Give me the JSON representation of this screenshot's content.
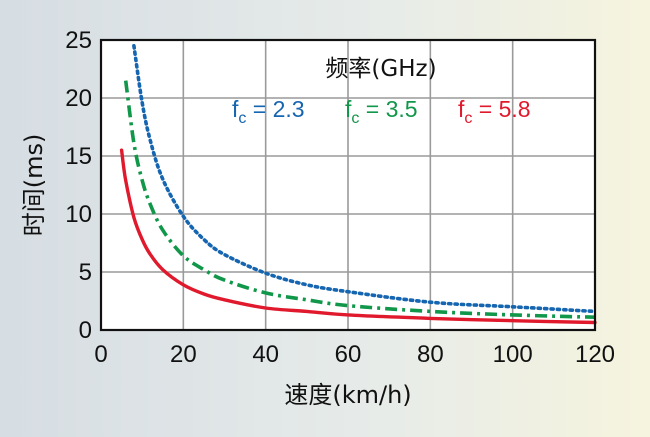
{
  "chart_data": {
    "type": "line",
    "xlabel": "速度(km/h)",
    "ylabel": "时间(ms)",
    "xlim": [
      0,
      120
    ],
    "ylim": [
      0,
      25
    ],
    "x_ticks": [
      0,
      20,
      40,
      60,
      80,
      100,
      120
    ],
    "y_ticks": [
      0,
      5,
      10,
      15,
      20,
      25
    ],
    "grid": true,
    "legend": {
      "title": "频率(GHz)",
      "placement": "top-right",
      "entries": [
        {
          "prefix": "f",
          "sub": "c",
          "text": " = 2.3",
          "color": "#1565b0"
        },
        {
          "prefix": "f",
          "sub": "c",
          "text": " = 3.5",
          "color": "#11974a"
        },
        {
          "prefix": "f",
          "sub": "c",
          "text": " = 5.8",
          "color": "#e0192c"
        }
      ]
    },
    "series": [
      {
        "color": "#1565b0",
        "style": "dotted",
        "x": [
          8,
          10,
          12,
          15,
          20,
          25,
          30,
          40,
          50,
          60,
          80,
          100,
          120
        ],
        "y": [
          24.5,
          19.6,
          16.3,
          13.0,
          9.8,
          7.8,
          6.5,
          4.9,
          3.9,
          3.3,
          2.4,
          2.0,
          1.6
        ]
      },
      {
        "color": "#11974a",
        "style": "dashdot",
        "x": [
          6,
          8,
          10,
          12,
          15,
          20,
          25,
          30,
          40,
          50,
          60,
          80,
          100,
          120
        ],
        "y": [
          21.5,
          16.1,
          12.9,
          10.8,
          8.6,
          6.4,
          5.2,
          4.3,
          3.2,
          2.6,
          2.1,
          1.6,
          1.3,
          1.1
        ]
      },
      {
        "color": "#e0192c",
        "style": "solid",
        "x": [
          5,
          6,
          8,
          10,
          12,
          15,
          20,
          25,
          30,
          40,
          50,
          60,
          80,
          100,
          120
        ],
        "y": [
          15.5,
          12.9,
          9.7,
          7.8,
          6.5,
          5.2,
          3.9,
          3.1,
          2.6,
          1.9,
          1.6,
          1.3,
          1.0,
          0.8,
          0.65
        ]
      }
    ]
  }
}
